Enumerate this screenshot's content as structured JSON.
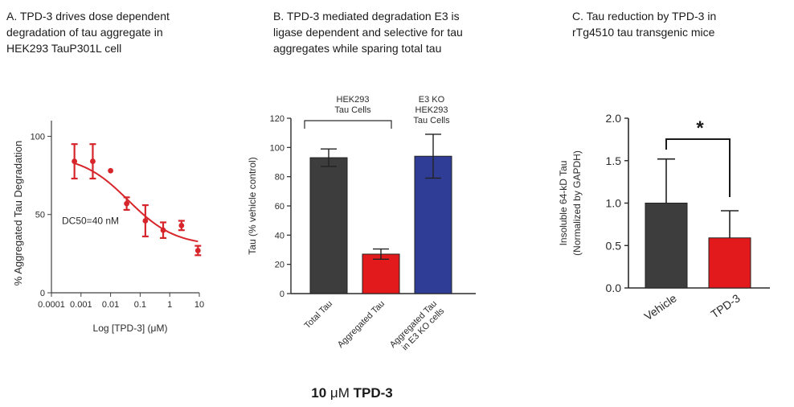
{
  "panels": {
    "a": {
      "title_lines": [
        "A. TPD-3 drives dose dependent",
        "degradation of tau aggregate in",
        "HEK293 TauP301L cell"
      ]
    },
    "b": {
      "title_lines": [
        "B. TPD-3 mediated degradation E3 is",
        "ligase dependent and selective for tau",
        "aggregates while sparing total  tau"
      ]
    },
    "c": {
      "title_lines": [
        "C. Tau reduction by TPD-3 in",
        "rTg4510 tau transgenic mice"
      ]
    }
  },
  "footer": {
    "prefix": "10 ",
    "unit": "μM",
    "compound": " TPD-3"
  },
  "colors": {
    "dark": "#3d3d3d",
    "red": "#e31a1c",
    "blue": "#2f3d96",
    "curve": "#d7262b"
  },
  "chart_data": [
    {
      "id": "panel-a",
      "type": "scatter",
      "xscale": "log10",
      "xlabel": "Log [TPD-3] (μM)",
      "ylabel": "% Aggregated Tau Degradation",
      "xlim": [
        0.0001,
        10
      ],
      "ylim": [
        0,
        110
      ],
      "xticks": [
        0.0001,
        0.001,
        0.01,
        0.1,
        1,
        10
      ],
      "xtick_labels": [
        "0.0001",
        "0.001",
        "0.01",
        "0.1",
        "1",
        "10"
      ],
      "yticks": [
        0,
        50,
        100
      ],
      "annotation": "DC50=40 nM",
      "points": [
        {
          "x": 0.0006,
          "y": 84,
          "err": 11
        },
        {
          "x": 0.0025,
          "y": 84,
          "err": 11
        },
        {
          "x": 0.01,
          "y": 78,
          "err": 0
        },
        {
          "x": 0.035,
          "y": 57,
          "err": 4
        },
        {
          "x": 0.15,
          "y": 46,
          "err": 10
        },
        {
          "x": 0.6,
          "y": 40,
          "err": 5
        },
        {
          "x": 2.5,
          "y": 43,
          "err": 3
        },
        {
          "x": 9,
          "y": 27,
          "err": 3
        }
      ],
      "fit": {
        "bottom": 30,
        "top": 88,
        "dc50": 0.04,
        "hill": 0.55
      }
    },
    {
      "id": "panel-b",
      "type": "bar",
      "ylabel": "Tau (% vehicle control)",
      "ylim": [
        0,
        120
      ],
      "yticks": [
        0,
        20,
        40,
        60,
        80,
        100,
        120
      ],
      "categories": [
        [
          "Total Tau"
        ],
        [
          "Aggregated Tau"
        ],
        [
          "Aggregated Tau",
          "in E3 KO cells"
        ]
      ],
      "values": [
        93,
        27,
        94
      ],
      "errors": [
        6,
        3.5,
        15
      ],
      "bar_colors": [
        "dark",
        "red",
        "blue"
      ],
      "group_labels": [
        {
          "lines": [
            "HEK293",
            "Tau Cells"
          ]
        },
        {
          "lines": [
            "E3 KO",
            "HEK293",
            "Tau Cells"
          ]
        }
      ]
    },
    {
      "id": "panel-c",
      "type": "bar",
      "ylabel": "Insoluble 64-kD Tau",
      "ylabel2": "(Normalized by GAPDH)",
      "ylim": [
        0,
        2
      ],
      "yticks": [
        0,
        0.5,
        1,
        1.5,
        2
      ],
      "ytick_labels": [
        "0.0",
        "0.5",
        "1.0",
        "1.5",
        "2.0"
      ],
      "categories": [
        "Vehicle",
        "TPD-3"
      ],
      "values": [
        1.0,
        0.59
      ],
      "errors": [
        0.52,
        0.32
      ],
      "bar_colors": [
        "dark",
        "red"
      ],
      "significance": "*"
    }
  ]
}
